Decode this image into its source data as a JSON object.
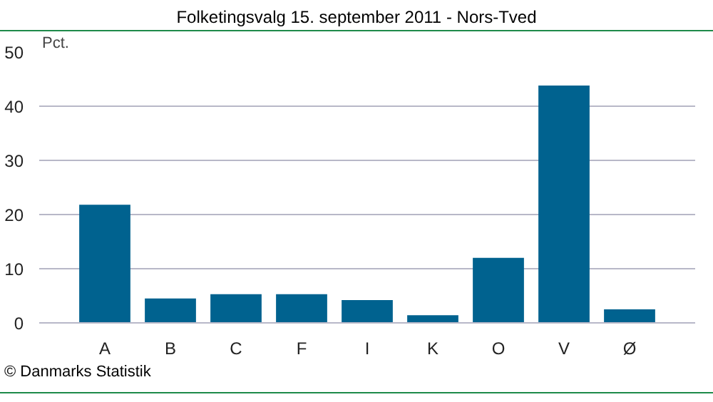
{
  "chart_data": {
    "type": "bar",
    "title": "Folketingsvalg 15. september 2011 - Nors-Tved",
    "ylabel": "Pct.",
    "categories": [
      "A",
      "B",
      "C",
      "F",
      "I",
      "K",
      "O",
      "V",
      "Ø"
    ],
    "values": [
      21.8,
      4.5,
      5.3,
      5.3,
      4.2,
      1.4,
      12.0,
      43.8,
      2.5
    ],
    "color": "#00628f",
    "ylim": [
      0,
      50
    ],
    "yticks": [
      0,
      10,
      20,
      30,
      40,
      50
    ],
    "grid": "y",
    "annotations": [
      "© Danmarks Statistik"
    ]
  }
}
